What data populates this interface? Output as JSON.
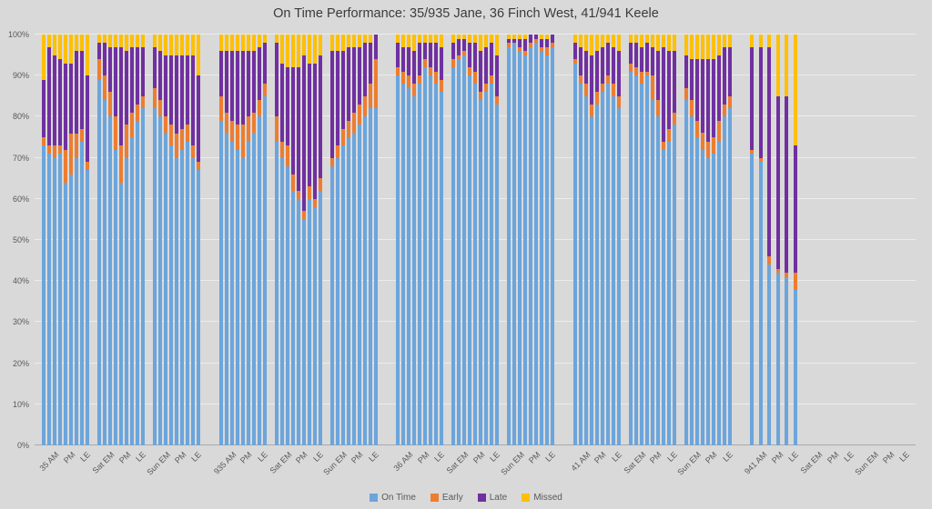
{
  "title": "On Time Performance: 35/935 Jane, 36 Finch West, 41/941 Keele",
  "y_axis": {
    "ticks": [
      "0%",
      "10%",
      "20%",
      "30%",
      "40%",
      "50%",
      "60%",
      "70%",
      "80%",
      "90%",
      "100%"
    ]
  },
  "legend": {
    "items": [
      {
        "label": "On Time",
        "color": "#6ba5dc"
      },
      {
        "label": "Early",
        "color": "#ed7d31"
      },
      {
        "label": "Late",
        "color": "#7030a0"
      },
      {
        "label": "Missed",
        "color": "#ffc000"
      }
    ]
  },
  "chart_data": {
    "type": "bar",
    "variant": "100-percent-stacked-column",
    "title": "On Time Performance: 35/935 Jane, 36 Finch West, 41/941 Keele",
    "xlabel": "",
    "ylabel": "",
    "ylim": [
      0,
      100
    ],
    "grid": true,
    "legend_position": "bottom",
    "series_names": [
      "On Time",
      "Early",
      "Late",
      "Missed"
    ],
    "colors": {
      "On Time": "#6ba5dc",
      "Early": "#ed7d31",
      "Late": "#7030a0",
      "Missed": "#ffc000"
    },
    "value_format": "percent, each bar sums to 100, order [On Time, Early, Late, Missed]",
    "routes": [
      {
        "name": "35",
        "clusters": [
          {
            "labels": [
              "35 AM",
              "PM",
              "LE"
            ],
            "bars": [
              [
                73,
                2,
                14,
                11
              ],
              [
                71,
                2,
                24,
                3
              ],
              [
                70,
                3,
                22,
                5
              ],
              [
                71,
                2,
                21,
                6
              ],
              [
                64,
                8,
                21,
                7
              ],
              [
                66,
                10,
                17,
                7
              ],
              [
                70,
                6,
                20,
                4
              ],
              [
                74,
                3,
                19,
                4
              ],
              [
                67,
                2,
                21,
                10
              ]
            ]
          },
          {
            "labels": [
              "Sat EM",
              "PM",
              "LE"
            ],
            "bars": [
              [
                89,
                5,
                4,
                2
              ],
              [
                84,
                6,
                8,
                2
              ],
              [
                80,
                6,
                11,
                3
              ],
              [
                72,
                8,
                17,
                3
              ],
              [
                64,
                9,
                24,
                3
              ],
              [
                70,
                8,
                18,
                4
              ],
              [
                75,
                6,
                16,
                3
              ],
              [
                79,
                4,
                14,
                3
              ],
              [
                82,
                3,
                12,
                3
              ]
            ]
          },
          {
            "labels": [
              "Sun EM",
              "PM",
              "LE"
            ],
            "bars": [
              [
                82,
                5,
                10,
                3
              ],
              [
                80,
                4,
                12,
                4
              ],
              [
                76,
                4,
                15,
                5
              ],
              [
                73,
                5,
                17,
                5
              ],
              [
                70,
                6,
                19,
                5
              ],
              [
                72,
                5,
                18,
                5
              ],
              [
                74,
                4,
                17,
                5
              ],
              [
                70,
                3,
                22,
                5
              ],
              [
                67,
                2,
                21,
                10
              ]
            ]
          }
        ]
      },
      {
        "name": "935",
        "clusters": [
          {
            "labels": [
              "935 AM",
              "PM",
              "LE"
            ],
            "bars": [
              [
                79,
                6,
                11,
                4
              ],
              [
                76,
                5,
                15,
                4
              ],
              [
                74,
                5,
                17,
                4
              ],
              [
                72,
                6,
                18,
                4
              ],
              [
                70,
                8,
                18,
                4
              ],
              [
                74,
                6,
                16,
                4
              ],
              [
                76,
                5,
                15,
                4
              ],
              [
                80,
                4,
                13,
                3
              ],
              [
                85,
                3,
                10,
                2
              ]
            ]
          },
          {
            "labels": [
              "Sat EM",
              "PM",
              "LE"
            ],
            "bars": [
              [
                74,
                6,
                18,
                2
              ],
              [
                70,
                4,
                19,
                7
              ],
              [
                68,
                5,
                19,
                8
              ],
              [
                62,
                4,
                26,
                8
              ],
              [
                60,
                2,
                30,
                8
              ],
              [
                55,
                2,
                38,
                5
              ],
              [
                60,
                3,
                30,
                7
              ],
              [
                58,
                2,
                33,
                7
              ],
              [
                62,
                3,
                30,
                5
              ]
            ]
          },
          {
            "labels": [
              "Sun EM",
              "PM",
              "LE"
            ],
            "bars": [
              [
                68,
                2,
                26,
                4
              ],
              [
                70,
                3,
                23,
                4
              ],
              [
                73,
                4,
                19,
                4
              ],
              [
                75,
                4,
                18,
                3
              ],
              [
                76,
                5,
                16,
                3
              ],
              [
                78,
                5,
                14,
                3
              ],
              [
                80,
                5,
                13,
                2
              ],
              [
                82,
                6,
                10,
                2
              ],
              [
                82,
                12,
                6,
                0
              ]
            ]
          }
        ]
      },
      {
        "name": "36",
        "clusters": [
          {
            "labels": [
              "36 AM",
              "PM",
              "LE"
            ],
            "bars": [
              [
                90,
                2,
                6,
                2
              ],
              [
                88,
                3,
                6,
                3
              ],
              [
                87,
                3,
                7,
                3
              ],
              [
                85,
                3,
                8,
                4
              ],
              [
                88,
                2,
                8,
                2
              ],
              [
                92,
                2,
                4,
                2
              ],
              [
                90,
                2,
                6,
                2
              ],
              [
                88,
                3,
                7,
                2
              ],
              [
                86,
                3,
                8,
                3
              ]
            ]
          },
          {
            "labels": [
              "Sat EM",
              "PM",
              "LE"
            ],
            "bars": [
              [
                92,
                2,
                4,
                2
              ],
              [
                94,
                1,
                4,
                1
              ],
              [
                95,
                1,
                3,
                1
              ],
              [
                90,
                2,
                6,
                2
              ],
              [
                88,
                3,
                7,
                2
              ],
              [
                84,
                2,
                10,
                4
              ],
              [
                86,
                2,
                9,
                3
              ],
              [
                88,
                2,
                8,
                2
              ],
              [
                83,
                2,
                10,
                5
              ]
            ]
          },
          {
            "labels": [
              "Sun EM",
              "PM",
              "LE"
            ],
            "bars": [
              [
                97,
                1,
                1,
                1
              ],
              [
                98,
                0,
                1,
                1
              ],
              [
                96,
                1,
                2,
                1
              ],
              [
                95,
                1,
                3,
                1
              ],
              [
                97,
                1,
                2,
                0
              ],
              [
                98,
                1,
                1,
                0
              ],
              [
                96,
                1,
                2,
                1
              ],
              [
                95,
                2,
                2,
                1
              ],
              [
                97,
                1,
                2,
                0
              ]
            ]
          }
        ]
      },
      {
        "name": "41",
        "clusters": [
          {
            "labels": [
              "41 AM",
              "PM",
              "LE"
            ],
            "bars": [
              [
                93,
                1,
                4,
                2
              ],
              [
                88,
                2,
                7,
                3
              ],
              [
                85,
                3,
                8,
                4
              ],
              [
                80,
                3,
                12,
                5
              ],
              [
                83,
                3,
                10,
                4
              ],
              [
                86,
                2,
                9,
                3
              ],
              [
                88,
                2,
                8,
                2
              ],
              [
                85,
                3,
                9,
                3
              ],
              [
                82,
                3,
                11,
                4
              ]
            ]
          },
          {
            "labels": [
              "Sat EM",
              "PM",
              "LE"
            ],
            "bars": [
              [
                91,
                2,
                5,
                2
              ],
              [
                90,
                2,
                6,
                2
              ],
              [
                88,
                3,
                6,
                3
              ],
              [
                90,
                1,
                7,
                2
              ],
              [
                84,
                6,
                7,
                3
              ],
              [
                80,
                4,
                12,
                4
              ],
              [
                72,
                2,
                23,
                3
              ],
              [
                74,
                3,
                19,
                4
              ],
              [
                78,
                3,
                15,
                4
              ]
            ]
          },
          {
            "labels": [
              "Sun EM",
              "PM",
              "LE"
            ],
            "bars": [
              [
                84,
                3,
                8,
                5
              ],
              [
                80,
                4,
                10,
                6
              ],
              [
                75,
                4,
                15,
                6
              ],
              [
                72,
                4,
                18,
                6
              ],
              [
                70,
                4,
                20,
                6
              ],
              [
                71,
                4,
                19,
                6
              ],
              [
                74,
                5,
                16,
                5
              ],
              [
                80,
                3,
                14,
                3
              ],
              [
                82,
                3,
                12,
                3
              ]
            ]
          }
        ]
      },
      {
        "name": "941",
        "clusters": [
          {
            "labels": [
              "941 AM",
              "PM",
              "LE"
            ],
            "bars": [
              [
                71,
                1,
                25,
                3
              ],
              [
                69,
                1,
                27,
                3
              ],
              [
                44,
                2,
                51,
                3
              ],
              [
                42,
                1,
                42,
                15
              ],
              [
                41,
                1,
                43,
                15
              ],
              [
                38,
                4,
                31,
                27
              ]
            ]
          },
          {
            "labels": [
              "Sat EM",
              "PM",
              "LE"
            ],
            "bars": []
          },
          {
            "labels": [
              "Sun EM",
              "PM",
              "LE"
            ],
            "bars": []
          }
        ]
      }
    ]
  }
}
